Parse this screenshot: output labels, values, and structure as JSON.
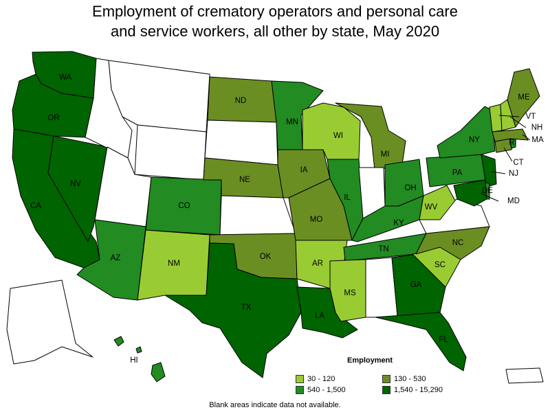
{
  "title_line1": "Employment of crematory operators and personal care",
  "title_line2": "and service workers, all other by state, May 2020",
  "legend": {
    "title": "Employment",
    "items": [
      {
        "label": "30 - 120",
        "color": "#99cc33"
      },
      {
        "label": "130 - 530",
        "color": "#6b8e23"
      },
      {
        "label": "540 - 1,500",
        "color": "#228b22"
      },
      {
        "label": "1,540 - 15,290",
        "color": "#006400"
      }
    ]
  },
  "footnote": "Blank areas indicate data not available.",
  "colors": {
    "no_data": "#ffffff",
    "border": "#000000"
  },
  "chart_data": {
    "type": "choropleth",
    "title": "Employment of crematory operators and personal care and service workers, all other by state, May 2020",
    "legend_title": "Employment",
    "bins": [
      "30 - 120",
      "130 - 530",
      "540 - 1,500",
      "1,540 - 15,290"
    ],
    "states": [
      {
        "abbr": "WA",
        "bin": 3
      },
      {
        "abbr": "OR",
        "bin": 3
      },
      {
        "abbr": "CA",
        "bin": 3
      },
      {
        "abbr": "NV",
        "bin": 3
      },
      {
        "abbr": "ID",
        "bin": null
      },
      {
        "abbr": "MT",
        "bin": null
      },
      {
        "abbr": "WY",
        "bin": null
      },
      {
        "abbr": "UT",
        "bin": null
      },
      {
        "abbr": "AZ",
        "bin": 2
      },
      {
        "abbr": "CO",
        "bin": 2
      },
      {
        "abbr": "NM",
        "bin": 0
      },
      {
        "abbr": "ND",
        "bin": 1
      },
      {
        "abbr": "SD",
        "bin": null
      },
      {
        "abbr": "NE",
        "bin": 1
      },
      {
        "abbr": "KS",
        "bin": null
      },
      {
        "abbr": "OK",
        "bin": 1
      },
      {
        "abbr": "TX",
        "bin": 3
      },
      {
        "abbr": "MN",
        "bin": 2
      },
      {
        "abbr": "IA",
        "bin": 1
      },
      {
        "abbr": "MO",
        "bin": 1
      },
      {
        "abbr": "AR",
        "bin": 0
      },
      {
        "abbr": "LA",
        "bin": 3
      },
      {
        "abbr": "WI",
        "bin": 0
      },
      {
        "abbr": "IL",
        "bin": 2
      },
      {
        "abbr": "MI",
        "bin": 1
      },
      {
        "abbr": "IN",
        "bin": null
      },
      {
        "abbr": "OH",
        "bin": 2
      },
      {
        "abbr": "KY",
        "bin": 2
      },
      {
        "abbr": "TN",
        "bin": 2
      },
      {
        "abbr": "MS",
        "bin": 0
      },
      {
        "abbr": "AL",
        "bin": null
      },
      {
        "abbr": "GA",
        "bin": 3
      },
      {
        "abbr": "FL",
        "bin": 3
      },
      {
        "abbr": "SC",
        "bin": 0
      },
      {
        "abbr": "NC",
        "bin": 1
      },
      {
        "abbr": "VA",
        "bin": null
      },
      {
        "abbr": "WV",
        "bin": 0
      },
      {
        "abbr": "PA",
        "bin": 2
      },
      {
        "abbr": "NY",
        "bin": 2
      },
      {
        "abbr": "NJ",
        "bin": 3
      },
      {
        "abbr": "MD",
        "bin": 3
      },
      {
        "abbr": "DE",
        "bin": 2
      },
      {
        "abbr": "CT",
        "bin": 1
      },
      {
        "abbr": "RI",
        "bin": 2
      },
      {
        "abbr": "MA",
        "bin": 1
      },
      {
        "abbr": "VT",
        "bin": 0
      },
      {
        "abbr": "NH",
        "bin": 0
      },
      {
        "abbr": "ME",
        "bin": 1
      },
      {
        "abbr": "AK",
        "bin": null
      },
      {
        "abbr": "HI",
        "bin": 2
      },
      {
        "abbr": "PR",
        "bin": null
      }
    ]
  }
}
